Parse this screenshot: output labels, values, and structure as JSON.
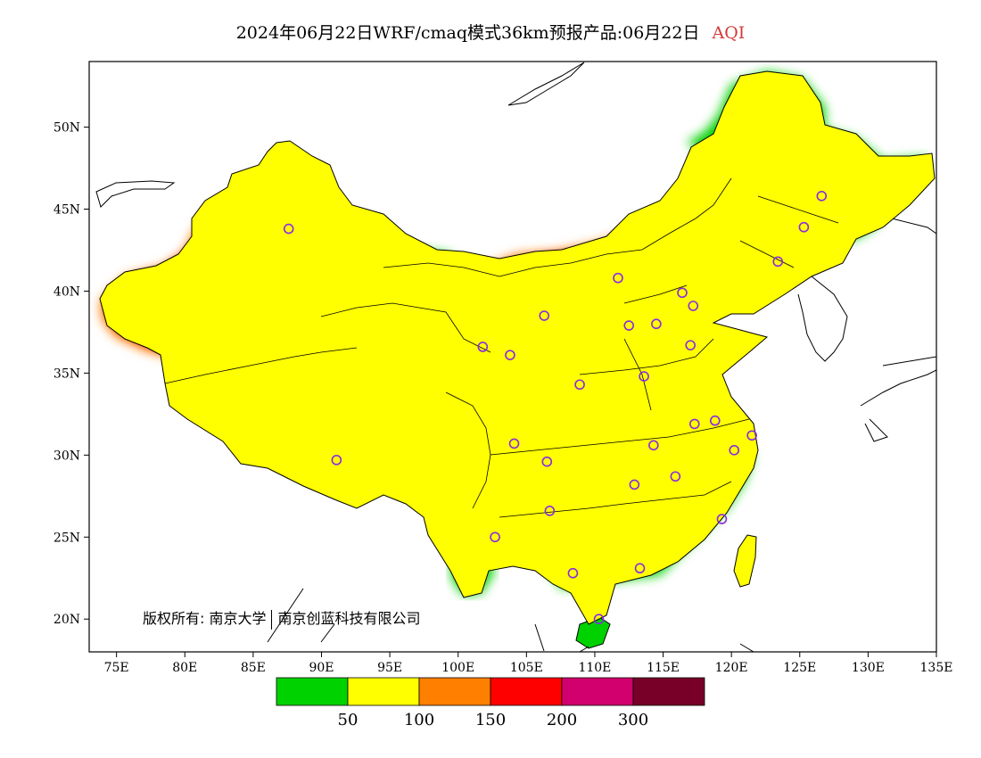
{
  "title": {
    "main": "2024年06月22日WRF/cmaq模式36km预报产品:06月22日",
    "variable": "AQI"
  },
  "copyright": {
    "owner_prefix": "版权所有: 南京大学",
    "owner_suffix": "南京创蓝科技有限公司"
  },
  "axes": {
    "x_ticks": [
      "75E",
      "80E",
      "85E",
      "90E",
      "95E",
      "100E",
      "105E",
      "110E",
      "115E",
      "120E",
      "125E",
      "130E",
      "135E"
    ],
    "y_ticks": [
      "50N",
      "45N",
      "40N",
      "35N",
      "30N",
      "25N",
      "20N"
    ],
    "lon_range": [
      73,
      135
    ],
    "lat_range": [
      18,
      54
    ]
  },
  "legend": {
    "colors": [
      "#00d200",
      "#ffff00",
      "#ff8000",
      "#ff0000",
      "#d2006e",
      "#780028"
    ],
    "labels": [
      "50",
      "100",
      "150",
      "200",
      "300"
    ]
  },
  "stations": [
    [
      87.6,
      43.8
    ],
    [
      91.1,
      29.7
    ],
    [
      101.8,
      36.6
    ],
    [
      103.8,
      36.1
    ],
    [
      106.3,
      38.5
    ],
    [
      104.1,
      30.7
    ],
    [
      106.5,
      29.6
    ],
    [
      106.7,
      26.6
    ],
    [
      102.7,
      25.0
    ],
    [
      108.4,
      22.8
    ],
    [
      110.3,
      20.0
    ],
    [
      113.3,
      23.1
    ],
    [
      112.9,
      28.2
    ],
    [
      115.9,
      28.7
    ],
    [
      114.3,
      30.6
    ],
    [
      117.3,
      31.9
    ],
    [
      118.8,
      32.1
    ],
    [
      120.2,
      30.3
    ],
    [
      121.5,
      31.2
    ],
    [
      119.3,
      26.1
    ],
    [
      108.9,
      34.3
    ],
    [
      113.6,
      34.8
    ],
    [
      112.5,
      37.9
    ],
    [
      114.5,
      38.0
    ],
    [
      117.0,
      36.7
    ],
    [
      117.2,
      39.1
    ],
    [
      116.4,
      39.9
    ],
    [
      111.7,
      40.8
    ],
    [
      123.4,
      41.8
    ],
    [
      125.3,
      43.9
    ],
    [
      126.6,
      45.8
    ]
  ]
}
